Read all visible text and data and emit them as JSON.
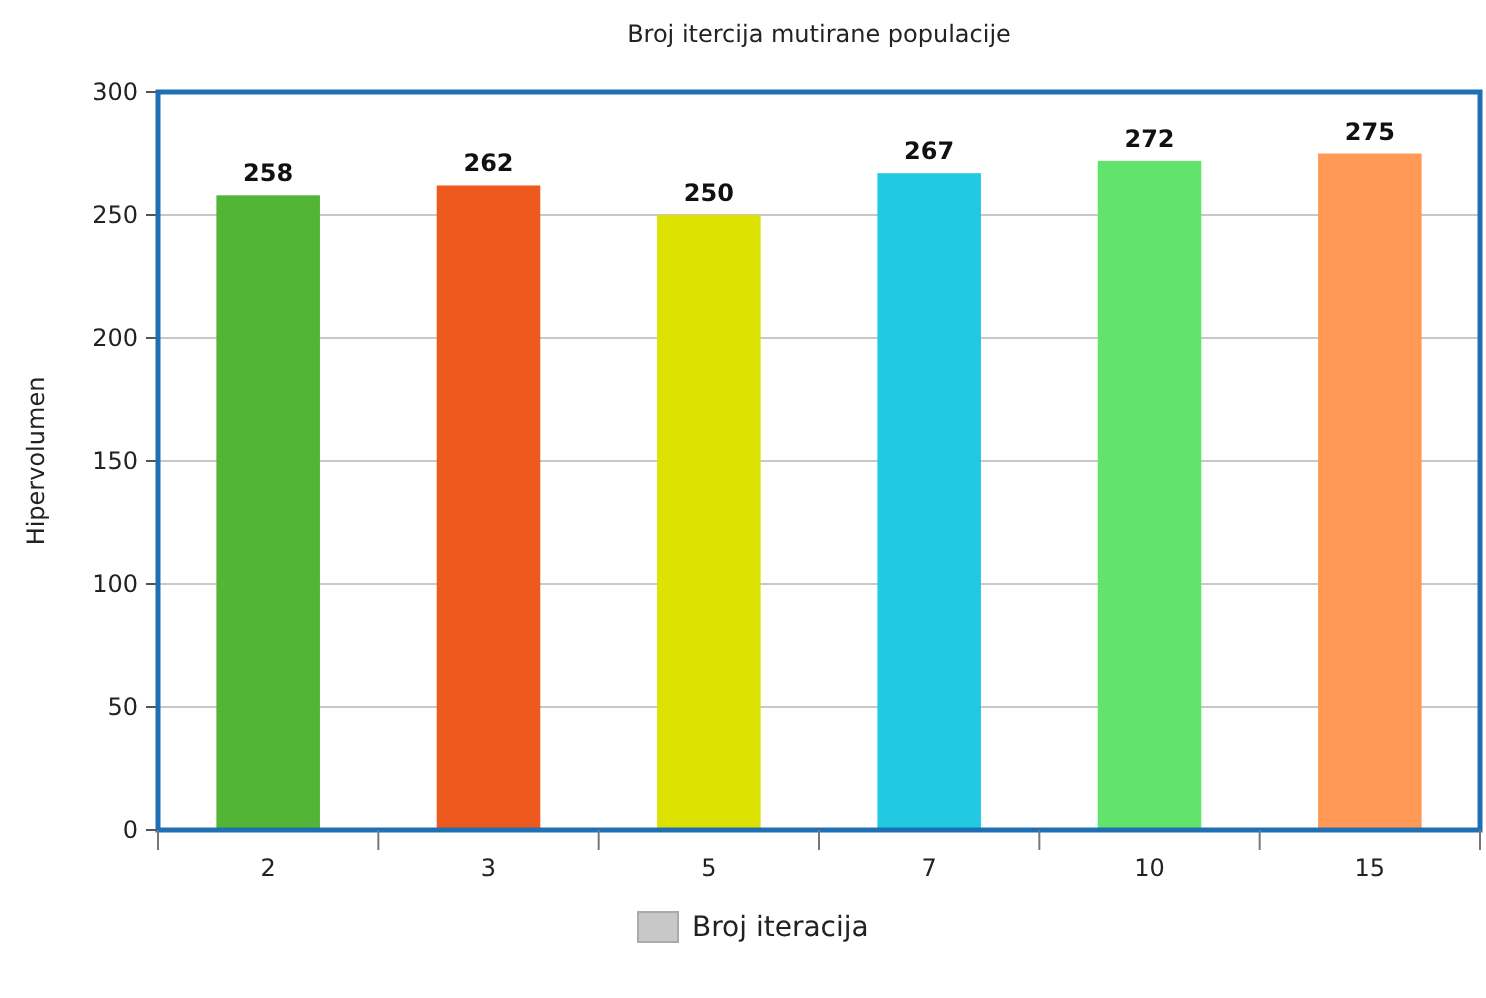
{
  "chart_data": {
    "type": "bar",
    "title": "Broj itercija mutirane populacije",
    "ylabel": "Hipervolumen",
    "categories": [
      "2",
      "3",
      "5",
      "7",
      "10",
      "15"
    ],
    "series": [
      {
        "name": "Broj iteracija",
        "color": "#c8c8c8",
        "colors": [
          "#52b535",
          "#ee5a1e",
          "#dde200",
          "#22c9e3",
          "#62e46c",
          "#ff9955"
        ],
        "values": [
          258,
          262,
          250,
          267,
          272,
          275
        ]
      }
    ],
    "ylim": [
      0,
      300
    ],
    "yticks": [
      0,
      50,
      100,
      150,
      200,
      250,
      300
    ],
    "grid": "y",
    "legend": "bottom",
    "data_labels": true
  }
}
